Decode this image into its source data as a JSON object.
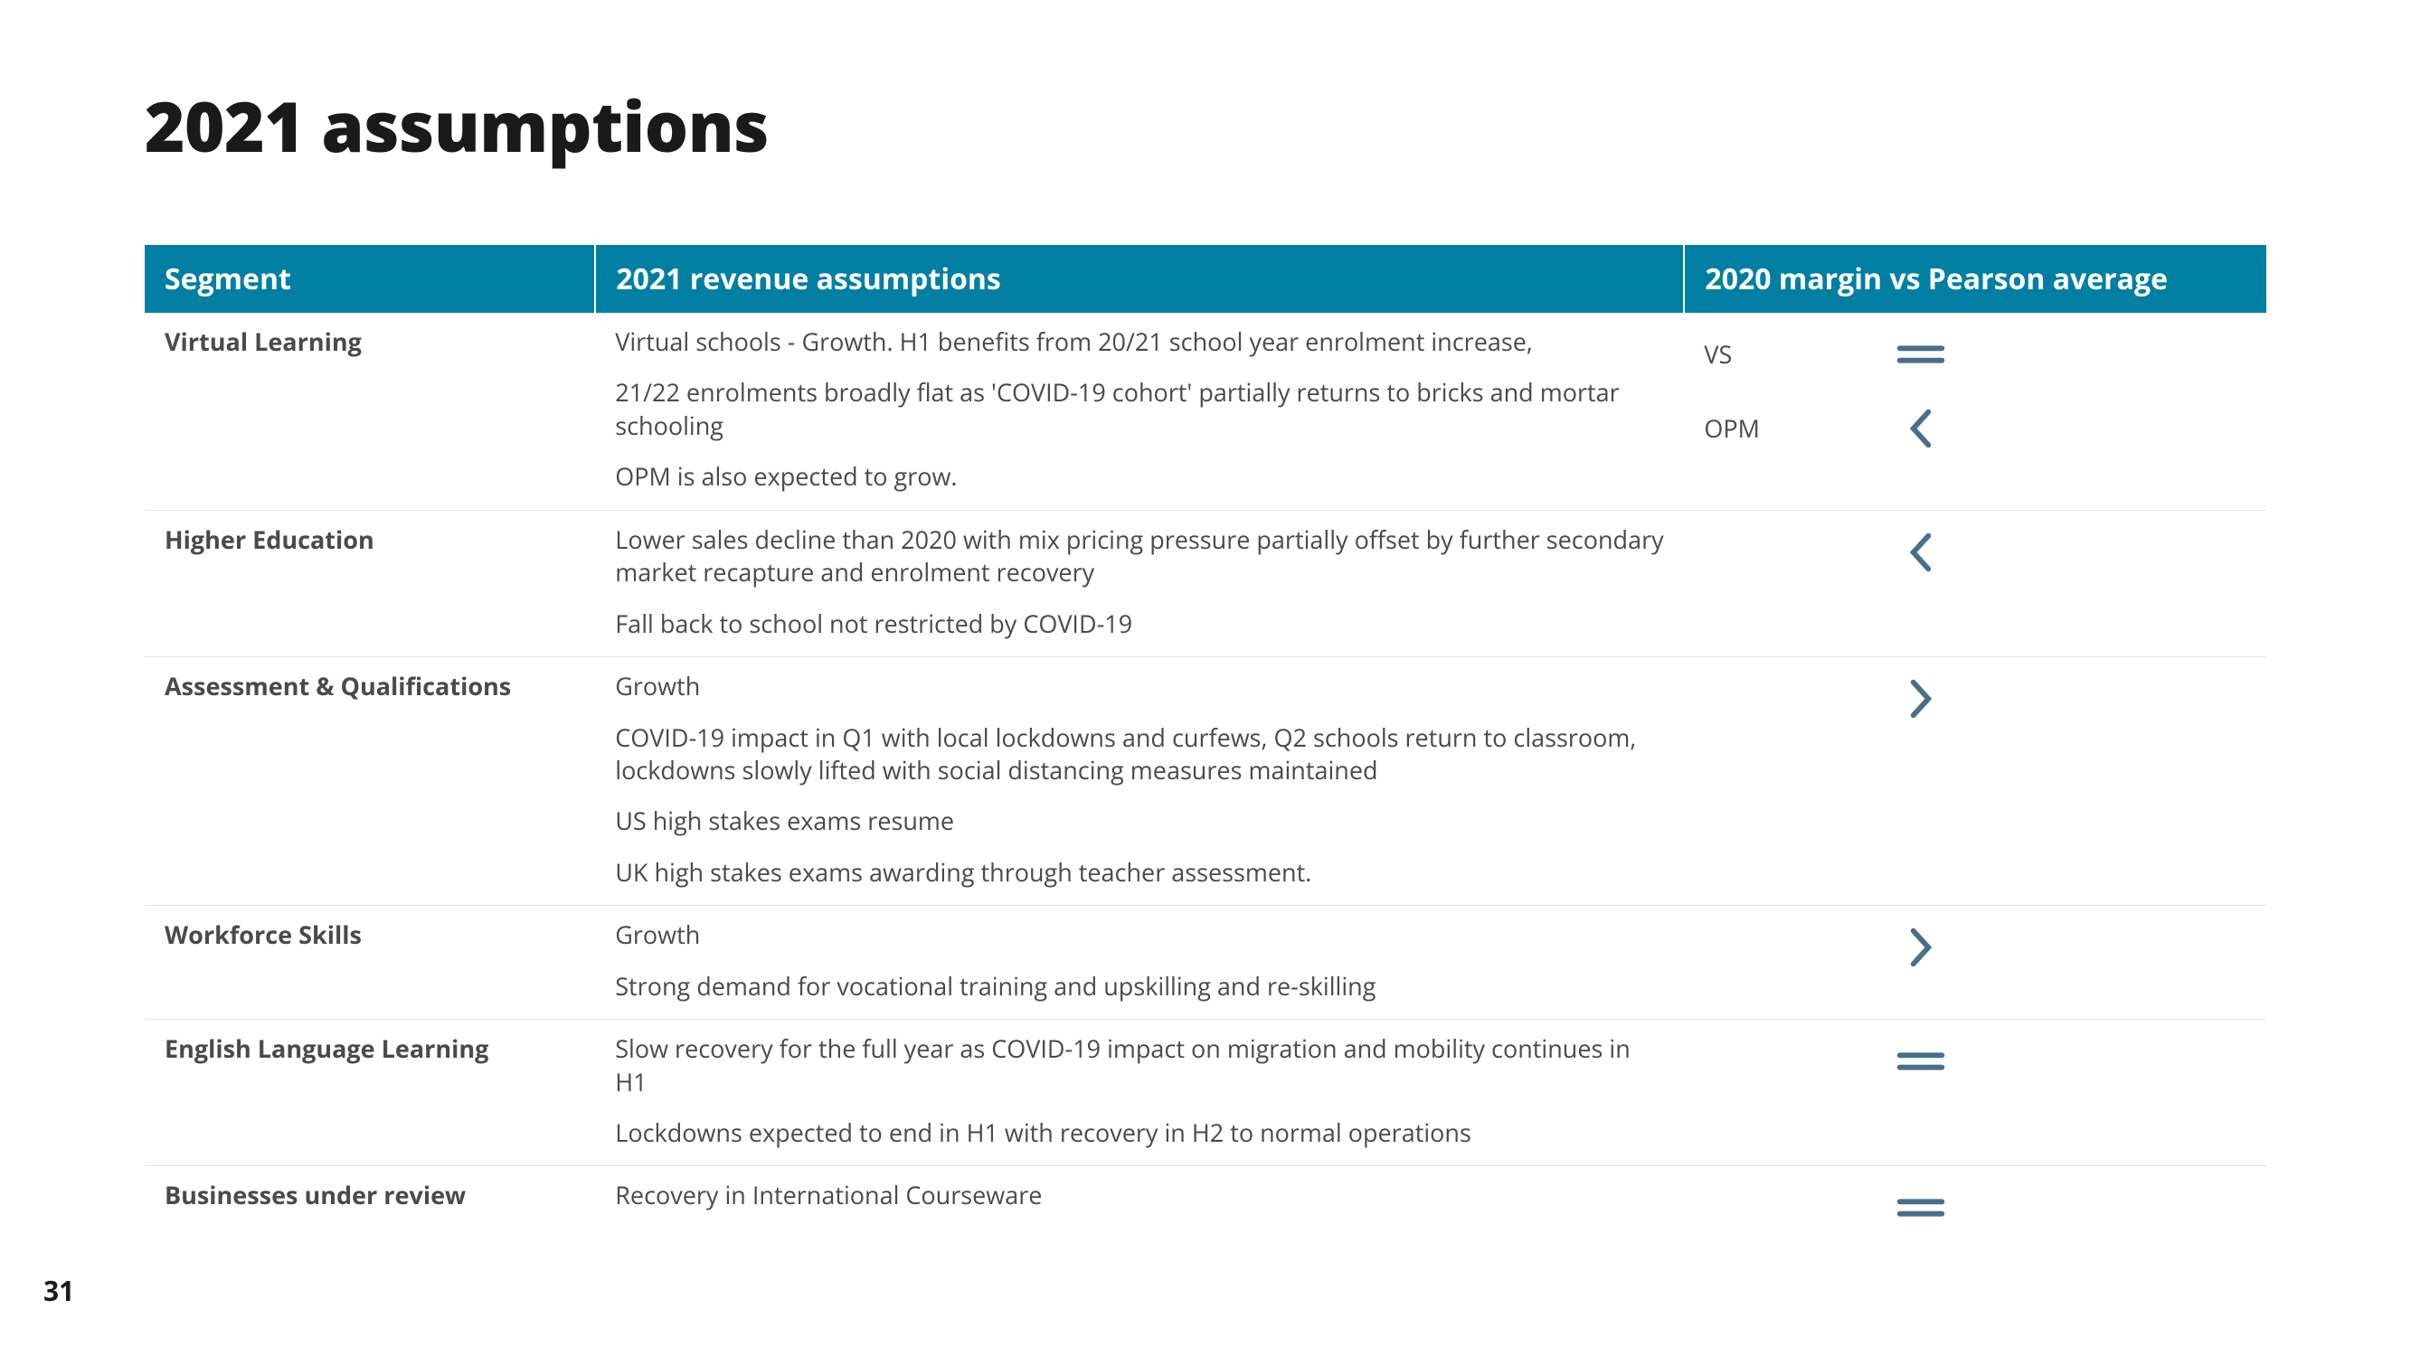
{
  "title": "2021 assumptions",
  "page_number": "31",
  "colors": {
    "header_bg": "#007fa3",
    "header_text": "#ffffff",
    "body_text": "#4a4a4a",
    "segment_text": "#1a1a1a",
    "icon_stroke": "#4a6f88",
    "row_border": "#e3e3e3"
  },
  "table": {
    "headers": {
      "segment": "Segment",
      "revenue": "2021 revenue assumptions",
      "margin": "2020 margin vs Pearson average"
    },
    "rows": [
      {
        "segment": "Virtual Learning",
        "revenue": [
          "Virtual schools - Growth. H1 benefits from 20/21 school year enrolment increase,",
          "21/22 enrolments broadly flat as 'COVID-19 cohort' partially returns to bricks and mortar schooling",
          "OPM is also expected to grow."
        ],
        "margin": [
          {
            "label": "VS",
            "icon": "equal"
          },
          {
            "label": "OPM",
            "icon": "less"
          }
        ]
      },
      {
        "segment": "Higher Education",
        "revenue": [
          "Lower sales decline than 2020 with mix pricing pressure partially offset by further secondary market recapture and enrolment recovery",
          "Fall back to school not restricted by COVID-19"
        ],
        "margin": [
          {
            "label": "",
            "icon": "less"
          }
        ]
      },
      {
        "segment": "Assessment & Qualifications",
        "revenue": [
          "Growth",
          "COVID-19 impact in Q1 with local lockdowns and curfews, Q2 schools return to classroom, lockdowns slowly lifted with social distancing  measures maintained",
          "US high stakes exams resume",
          "UK high stakes exams awarding through teacher assessment."
        ],
        "margin": [
          {
            "label": "",
            "icon": "greater"
          }
        ]
      },
      {
        "segment": "Workforce Skills",
        "revenue": [
          "Growth",
          "Strong demand for vocational training and upskilling and re-skilling"
        ],
        "margin": [
          {
            "label": "",
            "icon": "greater"
          }
        ]
      },
      {
        "segment": "English Language Learning",
        "revenue": [
          "Slow recovery for the full year as COVID-19 impact on migration and mobility continues in H1",
          "Lockdowns expected to end in H1 with recovery in H2 to normal operations"
        ],
        "margin": [
          {
            "label": "",
            "icon": "equal"
          }
        ]
      },
      {
        "segment": "Businesses under review",
        "revenue": [
          "Recovery in International Courseware"
        ],
        "margin": [
          {
            "label": "",
            "icon": "equal"
          }
        ]
      }
    ]
  }
}
